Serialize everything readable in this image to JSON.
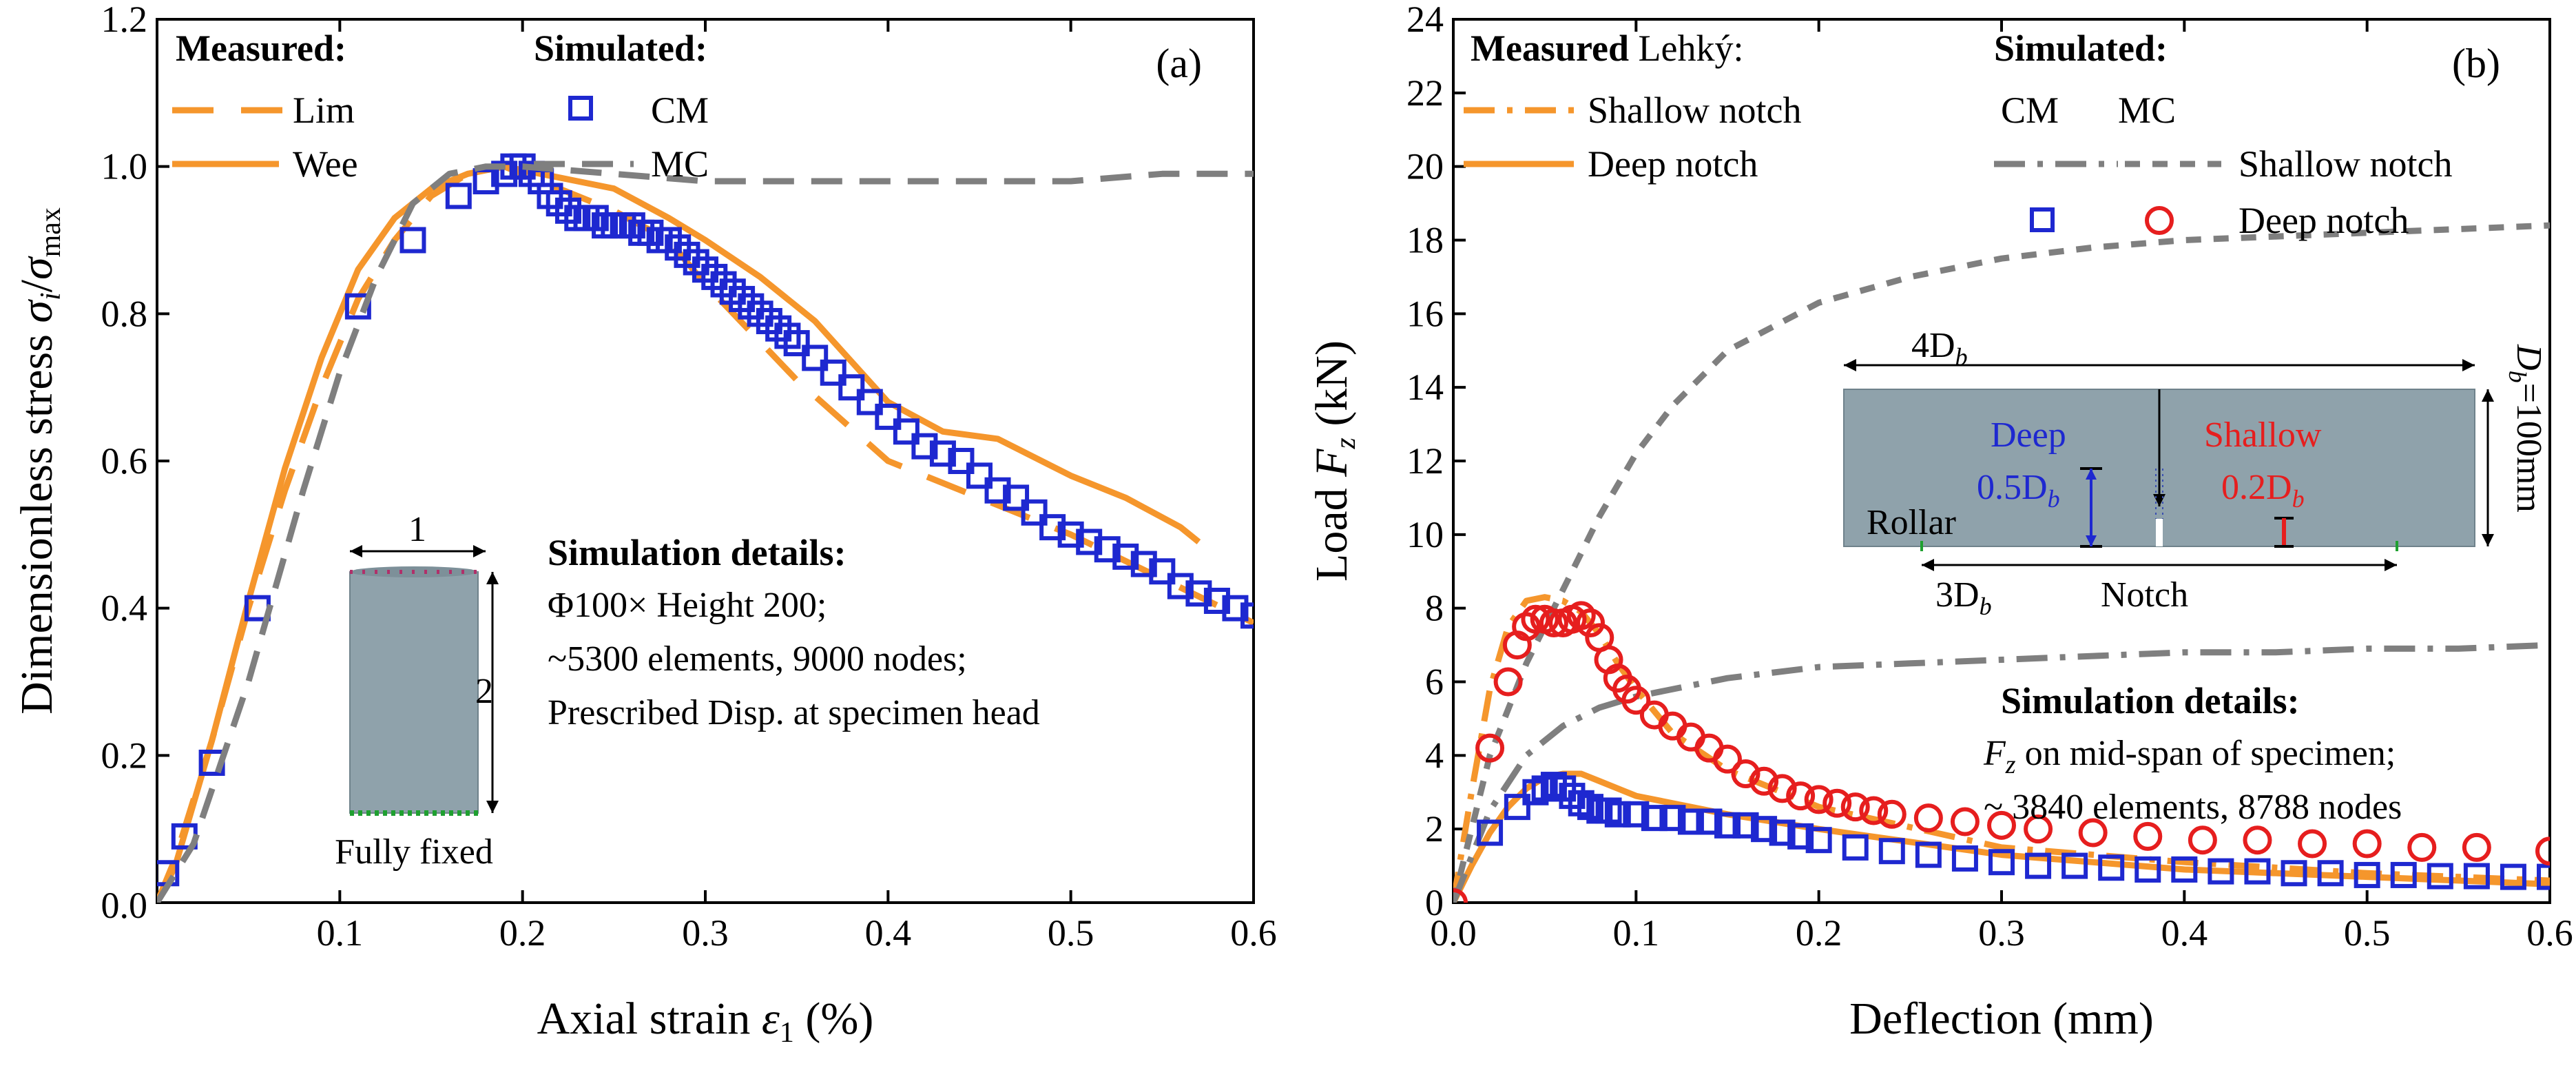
{
  "colors": {
    "measured": "#F5962C",
    "cm": "#1E28D0",
    "mc": "#7F7F7F",
    "deep": "#1E28D0",
    "shallow": "#E61E1E",
    "specimen": "#8FA2AB"
  },
  "icons": [
    "square-marker-icon",
    "circle-marker-icon"
  ],
  "chart_data": [
    {
      "type": "line",
      "panel_label": "(a)",
      "xlabel": "Axial strain ε₁ (%)",
      "ylabel": "Dimensionless stress σᵢ/σmax",
      "xlim": [
        0,
        0.6
      ],
      "ylim": [
        0,
        1.2
      ],
      "xticks": [
        "0.1",
        "0.2",
        "0.3",
        "0.4",
        "0.5",
        "0.6"
      ],
      "yticks": [
        "0.2",
        "0.4",
        "0.6",
        "0.8",
        "1.0",
        "1.2"
      ],
      "origin_label": "0.0",
      "legend": {
        "measured_title": "Measured:",
        "simulated_title": "Simulated:"
      },
      "series": [
        {
          "name": "Lim",
          "style": "dashed",
          "group": "measured",
          "x": [
            0,
            0.01,
            0.03,
            0.05,
            0.07,
            0.09,
            0.11,
            0.13,
            0.15,
            0.17,
            0.19,
            0.2,
            0.22,
            0.25,
            0.28,
            0.3,
            0.35,
            0.4,
            0.45,
            0.5,
            0.55,
            0.6
          ],
          "y": [
            0,
            0.06,
            0.22,
            0.4,
            0.56,
            0.7,
            0.82,
            0.9,
            0.96,
            0.99,
            1.0,
            0.99,
            0.97,
            0.94,
            0.9,
            0.84,
            0.71,
            0.6,
            0.55,
            0.5,
            0.44,
            0.38
          ]
        },
        {
          "name": "Wee",
          "style": "solid",
          "group": "measured",
          "x": [
            0,
            0.01,
            0.03,
            0.05,
            0.07,
            0.09,
            0.11,
            0.13,
            0.15,
            0.17,
            0.19,
            0.21,
            0.23,
            0.25,
            0.28,
            0.3,
            0.33,
            0.36,
            0.4,
            0.43,
            0.46,
            0.5,
            0.53,
            0.56,
            0.57
          ],
          "y": [
            0,
            0.05,
            0.22,
            0.41,
            0.59,
            0.74,
            0.86,
            0.93,
            0.97,
            0.99,
            1.0,
            0.99,
            0.98,
            0.97,
            0.93,
            0.9,
            0.85,
            0.79,
            0.68,
            0.64,
            0.63,
            0.58,
            0.55,
            0.51,
            0.49
          ]
        },
        {
          "name": "CM",
          "style": "square",
          "group": "simulated",
          "x": [
            0.005,
            0.015,
            0.03,
            0.055,
            0.11,
            0.14,
            0.165,
            0.18,
            0.19,
            0.195,
            0.2,
            0.205,
            0.21,
            0.215,
            0.22,
            0.225,
            0.23,
            0.235,
            0.24,
            0.245,
            0.25,
            0.255,
            0.26,
            0.265,
            0.27,
            0.275,
            0.28,
            0.285,
            0.29,
            0.295,
            0.3,
            0.305,
            0.31,
            0.315,
            0.32,
            0.325,
            0.33,
            0.335,
            0.34,
            0.345,
            0.35,
            0.36,
            0.37,
            0.38,
            0.39,
            0.4,
            0.41,
            0.42,
            0.43,
            0.44,
            0.45,
            0.46,
            0.47,
            0.48,
            0.49,
            0.5,
            0.51,
            0.52,
            0.53,
            0.54,
            0.55,
            0.56,
            0.57,
            0.58,
            0.59,
            0.6
          ],
          "y": [
            0.04,
            0.09,
            0.19,
            0.4,
            0.81,
            0.9,
            0.96,
            0.98,
            0.99,
            1.0,
            1.0,
            0.99,
            0.98,
            0.96,
            0.95,
            0.94,
            0.93,
            0.93,
            0.93,
            0.92,
            0.92,
            0.92,
            0.92,
            0.91,
            0.91,
            0.9,
            0.9,
            0.89,
            0.88,
            0.87,
            0.86,
            0.85,
            0.84,
            0.83,
            0.82,
            0.81,
            0.8,
            0.79,
            0.78,
            0.77,
            0.76,
            0.74,
            0.72,
            0.7,
            0.68,
            0.66,
            0.64,
            0.62,
            0.61,
            0.6,
            0.58,
            0.56,
            0.55,
            0.53,
            0.51,
            0.5,
            0.49,
            0.48,
            0.47,
            0.46,
            0.45,
            0.43,
            0.42,
            0.41,
            0.4,
            0.39
          ]
        },
        {
          "name": "MC",
          "style": "dashed-gray",
          "group": "simulated",
          "x": [
            0,
            0.02,
            0.05,
            0.08,
            0.1,
            0.12,
            0.14,
            0.16,
            0.18,
            0.2,
            0.25,
            0.3,
            0.35,
            0.4,
            0.45,
            0.5,
            0.55,
            0.6
          ],
          "y": [
            0,
            0.08,
            0.3,
            0.56,
            0.72,
            0.85,
            0.95,
            0.99,
            1.0,
            1.0,
            0.99,
            0.98,
            0.98,
            0.98,
            0.98,
            0.98,
            0.99,
            0.99
          ]
        }
      ],
      "inset": {
        "top_label": "1",
        "side_label": "2",
        "bottom_label": "Fully fixed"
      },
      "notes": {
        "title": "Simulation details:",
        "lines": [
          "Φ100× Height 200;",
          "~5300 elements, 9000 nodes;",
          "Prescribed Disp. at specimen head"
        ]
      }
    },
    {
      "type": "line",
      "panel_label": "(b)",
      "xlabel": "Deflection (mm)",
      "ylabel": "Load Fz (kN)",
      "xlim": [
        0,
        0.6
      ],
      "ylim": [
        0,
        24
      ],
      "xticks": [
        "0.0",
        "0.1",
        "0.2",
        "0.3",
        "0.4",
        "0.5",
        "0.6"
      ],
      "yticks": [
        "0",
        "2",
        "4",
        "6",
        "8",
        "10",
        "12",
        "14",
        "16",
        "18",
        "20",
        "22",
        "24"
      ],
      "legend": {
        "measured_title": "Measured",
        "measured_suffix": "Lehký:",
        "simulated_title": "Simulated:",
        "cm_label": "CM",
        "mc_label": "MC"
      },
      "series": [
        {
          "name": "Shallow notch",
          "style": "dashdot",
          "group": "measured",
          "x": [
            0,
            0.01,
            0.02,
            0.03,
            0.04,
            0.05,
            0.06,
            0.07,
            0.08,
            0.09,
            0.1,
            0.12,
            0.15,
            0.2,
            0.3,
            0.4,
            0.5,
            0.6
          ],
          "y": [
            0,
            3.0,
            5.8,
            7.5,
            8.2,
            8.3,
            8.2,
            7.9,
            7.3,
            6.5,
            5.8,
            4.6,
            3.6,
            2.6,
            1.5,
            1.1,
            0.8,
            0.6
          ]
        },
        {
          "name": "Deep notch",
          "style": "solid",
          "group": "measured",
          "x": [
            0,
            0.01,
            0.02,
            0.03,
            0.04,
            0.05,
            0.06,
            0.07,
            0.08,
            0.1,
            0.15,
            0.2,
            0.3,
            0.4,
            0.5,
            0.6
          ],
          "y": [
            0,
            1.0,
            1.9,
            2.6,
            3.1,
            3.4,
            3.5,
            3.5,
            3.3,
            2.9,
            2.4,
            2.0,
            1.3,
            0.9,
            0.7,
            0.5
          ]
        },
        {
          "name": "Shallow notch",
          "style": "dash-gray",
          "group": "simulated",
          "x": [
            0,
            0.02,
            0.04,
            0.06,
            0.08,
            0.1,
            0.12,
            0.15,
            0.2,
            0.25,
            0.3,
            0.35,
            0.4,
            0.45,
            0.5,
            0.55,
            0.6
          ],
          "y": [
            0,
            4.0,
            6.5,
            8.5,
            10.5,
            12.2,
            13.5,
            15.0,
            16.3,
            17.0,
            17.5,
            17.8,
            18.0,
            18.1,
            18.2,
            18.3,
            18.4
          ]
        },
        {
          "name": "Shallow notch",
          "style": "dashdot-gray",
          "group": "simulated",
          "x": [
            0,
            0.02,
            0.04,
            0.06,
            0.08,
            0.1,
            0.15,
            0.2,
            0.25,
            0.3,
            0.35,
            0.4,
            0.45,
            0.5,
            0.55,
            0.6
          ],
          "y": [
            0,
            2.5,
            4.0,
            4.8,
            5.3,
            5.6,
            6.1,
            6.4,
            6.5,
            6.6,
            6.7,
            6.8,
            6.8,
            6.9,
            6.9,
            7.0
          ]
        },
        {
          "name": "Deep notch",
          "style": "square",
          "group": "simulated",
          "x": [
            0.02,
            0.035,
            0.045,
            0.05,
            0.055,
            0.06,
            0.065,
            0.07,
            0.075,
            0.08,
            0.085,
            0.09,
            0.1,
            0.11,
            0.12,
            0.13,
            0.14,
            0.15,
            0.16,
            0.17,
            0.18,
            0.19,
            0.2,
            0.22,
            0.24,
            0.26,
            0.28,
            0.3,
            0.32,
            0.34,
            0.36,
            0.38,
            0.4,
            0.42,
            0.44,
            0.46,
            0.48,
            0.5,
            0.52,
            0.54,
            0.56,
            0.58,
            0.6
          ],
          "y": [
            1.9,
            2.6,
            3.0,
            3.1,
            3.2,
            3.1,
            2.9,
            2.7,
            2.6,
            2.5,
            2.5,
            2.4,
            2.4,
            2.3,
            2.3,
            2.2,
            2.2,
            2.1,
            2.1,
            2.0,
            1.9,
            1.8,
            1.7,
            1.5,
            1.4,
            1.3,
            1.2,
            1.1,
            1.0,
            1.0,
            0.95,
            0.9,
            0.9,
            0.85,
            0.85,
            0.8,
            0.8,
            0.75,
            0.75,
            0.72,
            0.72,
            0.7,
            0.7
          ]
        },
        {
          "name": "Deep notch",
          "style": "circle",
          "group": "simulated",
          "x": [
            0,
            0.02,
            0.03,
            0.035,
            0.04,
            0.045,
            0.05,
            0.055,
            0.06,
            0.065,
            0.07,
            0.075,
            0.08,
            0.085,
            0.09,
            0.095,
            0.1,
            0.11,
            0.12,
            0.13,
            0.14,
            0.15,
            0.16,
            0.17,
            0.18,
            0.19,
            0.2,
            0.21,
            0.22,
            0.23,
            0.24,
            0.26,
            0.28,
            0.3,
            0.32,
            0.35,
            0.38,
            0.41,
            0.44,
            0.47,
            0.5,
            0.53,
            0.56,
            0.6
          ],
          "y": [
            0,
            4.2,
            6.0,
            7.0,
            7.5,
            7.7,
            7.7,
            7.6,
            7.6,
            7.7,
            7.8,
            7.6,
            7.2,
            6.6,
            6.1,
            5.8,
            5.5,
            5.1,
            4.8,
            4.5,
            4.2,
            3.9,
            3.5,
            3.3,
            3.1,
            2.9,
            2.8,
            2.7,
            2.6,
            2.5,
            2.4,
            2.3,
            2.2,
            2.1,
            2.0,
            1.9,
            1.8,
            1.7,
            1.7,
            1.6,
            1.6,
            1.5,
            1.5,
            1.4
          ]
        }
      ],
      "inset": {
        "width_label": "4D",
        "deep_label": "Deep",
        "deep_depth": "0.5D",
        "shallow_label": "Shallow",
        "shallow_depth": "0.2D",
        "rollar_label": "Rollar",
        "span_label": "3D",
        "notch_label": "Notch",
        "height_label": "D=100mm",
        "subscript": "b"
      },
      "notes": {
        "title": "Simulation details:",
        "line1_suffix": "on mid-span of specimen;",
        "line1_prefix": "F",
        "line1_sub": "z",
        "line2": "~ 3840 elements, 8788 nodes"
      }
    }
  ]
}
